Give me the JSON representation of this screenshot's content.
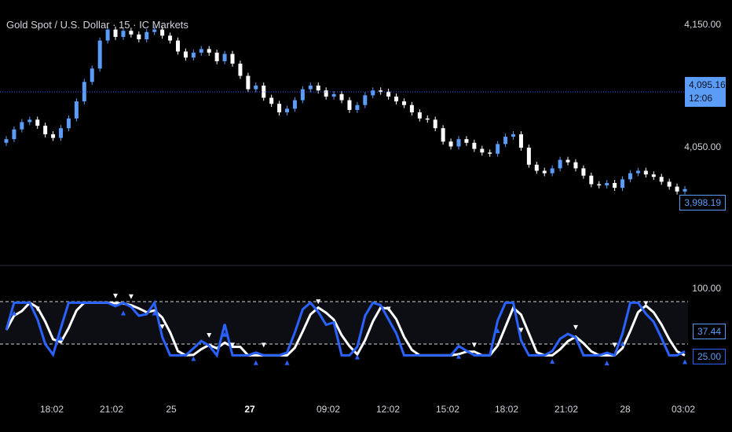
{
  "header": {
    "title": "Gold Spot / U.S. Dollar · 15 · IC Markets"
  },
  "price_axis": {
    "labels": [
      "4,150.00",
      "4,050.00"
    ],
    "current_price": "4,095.16",
    "countdown": "12:06",
    "last_price": "3,998.19"
  },
  "osc_axis": {
    "upper": "100.00",
    "value": "37.44",
    "lower": "25.00"
  },
  "time_axis": {
    "labels": [
      "18:02",
      "21:02",
      "25",
      "27",
      "09:02",
      "12:02",
      "15:02",
      "18:02",
      "21:02",
      "28",
      "03:02"
    ]
  },
  "colors": {
    "up": "#5b9cf6",
    "down": "#ffffff",
    "osc_fast": "#2962ff",
    "osc_slow": "#ffffff",
    "current_line": "#3d5afe",
    "badge_blue": "#5b9cf6"
  },
  "chart_data": {
    "type": "candlestick",
    "symbol": "Gold Spot / U.S. Dollar",
    "interval": "15",
    "broker": "IC Markets",
    "y_ticks": [
      4150,
      4050
    ],
    "close_series": [
      4057,
      4065,
      4071,
      4073,
      4068,
      4061,
      4058,
      4066,
      4074,
      4088,
      4104,
      4115,
      4138,
      4147,
      4141,
      4146,
      4143,
      4139,
      4145,
      4147,
      4142,
      4138,
      4129,
      4124,
      4128,
      4131,
      4128,
      4121,
      4127,
      4119,
      4109,
      4098,
      4101,
      4091,
      4086,
      4079,
      4082,
      4089,
      4098,
      4101,
      4097,
      4092,
      4094,
      4089,
      4081,
      4085,
      4093,
      4097,
      4096,
      4092,
      4088,
      4085,
      4079,
      4074,
      4073,
      4066,
      4055,
      4051,
      4057,
      4054,
      4049,
      4046,
      4045,
      4053,
      4059,
      4061,
      4050,
      4036,
      4031,
      4029,
      4033,
      4040,
      4038,
      4033,
      4027,
      4020,
      4019,
      4021,
      4017,
      4024,
      4029,
      4031,
      4028,
      4026,
      4022,
      4018,
      4014,
      4016
    ]
  }
}
